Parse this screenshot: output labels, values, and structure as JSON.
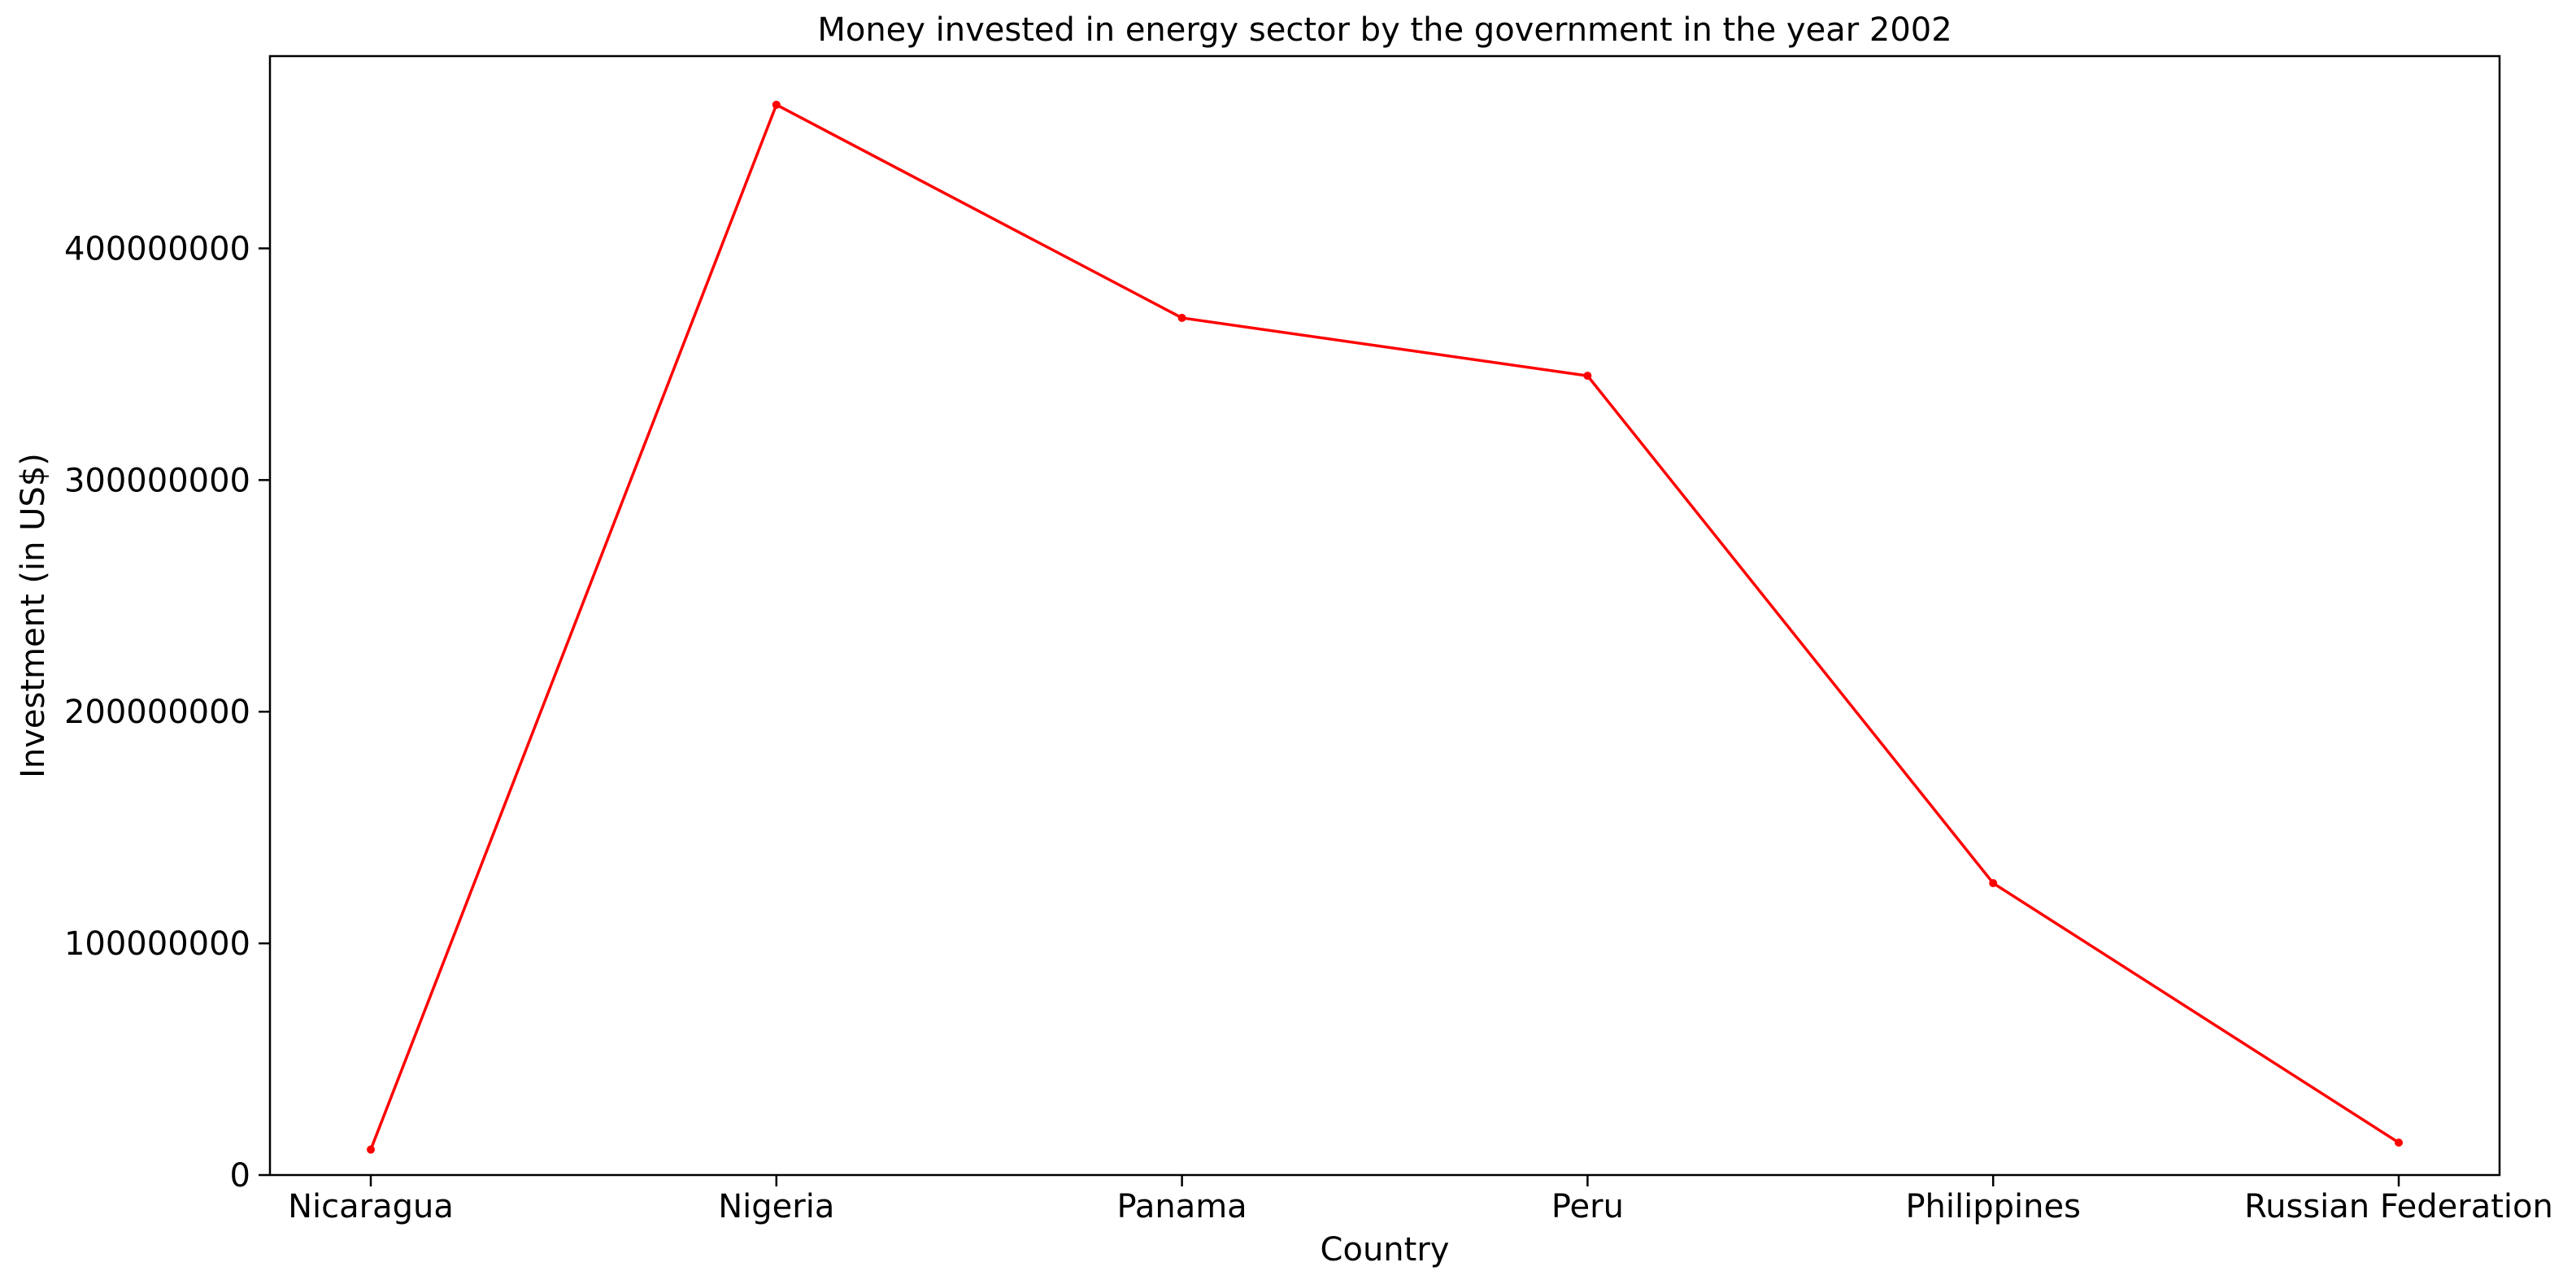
{
  "chart_data": {
    "type": "line",
    "title": "Money invested in energy sector by the government in the year 2002",
    "xlabel": "Country",
    "ylabel": "Investment (in US$)",
    "categories": [
      "Nicaragua",
      "Nigeria",
      "Panama",
      "Peru",
      "Philippines",
      "Russian Federation"
    ],
    "series": [
      {
        "values": [
          11000000,
          462000000,
          370000000,
          345000000,
          126000000,
          14000000
        ]
      }
    ],
    "ylim": [
      0,
      483000000
    ],
    "yticks": [
      0,
      100000000,
      200000000,
      300000000,
      400000000
    ],
    "ytick_labels": [
      "0",
      "100000000",
      "200000000",
      "300000000",
      "400000000"
    ],
    "grid": false,
    "line_color": "#ff0000",
    "marker": "circle"
  }
}
